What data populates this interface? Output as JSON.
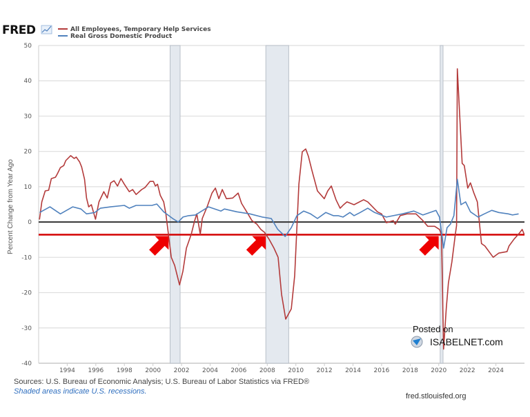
{
  "header": {
    "logo": "FRED"
  },
  "footer": {
    "sources": "Sources: U.S. Bureau of Economic Analysis; U.S. Bureau of Labor Statistics via FRED®",
    "shaded_note": "Shaded areas indicate U.S. recessions.",
    "site": "fred.stlouisfed.org"
  },
  "watermark": {
    "line1": "Posted on",
    "line2": "ISABELNET.com"
  },
  "chart_data": {
    "type": "line",
    "ylabel": "Percent Change from Year Ago",
    "xlim": [
      1992,
      2026
    ],
    "ylim": [
      -40,
      50
    ],
    "grid": true,
    "legend_placement": "top-left",
    "x_ticks": [
      "1994",
      "1996",
      "1998",
      "2000",
      "2002",
      "2004",
      "2006",
      "2008",
      "2010",
      "2012",
      "2014",
      "2016",
      "2018",
      "2020",
      "2022",
      "2024"
    ],
    "y_ticks": [
      "50",
      "40",
      "30",
      "20",
      "10",
      "0",
      "-10",
      "-20",
      "-30",
      "-40"
    ],
    "recessions": [
      [
        2001.2,
        2001.9
      ],
      [
        2007.9,
        2009.5
      ],
      [
        2020.1,
        2020.3
      ]
    ],
    "reference_lines": [
      {
        "value": 0,
        "color": "#333333"
      },
      {
        "value": -3.6,
        "color": "#d40000"
      }
    ],
    "annotation_arrows": [
      2001.0,
      2007.8,
      2019.9
    ],
    "series": [
      {
        "name": "All Employees, Temporary Help Services",
        "color": "#b33a3a",
        "points": [
          [
            1992.06,
            0.7
          ],
          [
            1992.22,
            5.7
          ],
          [
            1992.46,
            8.8
          ],
          [
            1992.7,
            9.0
          ],
          [
            1992.89,
            12.3
          ],
          [
            1993.18,
            12.7
          ],
          [
            1993.32,
            13.7
          ],
          [
            1993.52,
            15.4
          ],
          [
            1993.76,
            16.0
          ],
          [
            1993.9,
            17.4
          ],
          [
            1994.24,
            18.8
          ],
          [
            1994.48,
            18.0
          ],
          [
            1994.63,
            18.4
          ],
          [
            1994.87,
            17.0
          ],
          [
            1995.01,
            15.6
          ],
          [
            1995.21,
            12.1
          ],
          [
            1995.35,
            6.8
          ],
          [
            1995.5,
            4.3
          ],
          [
            1995.69,
            4.9
          ],
          [
            1995.83,
            2.9
          ],
          [
            1995.98,
            0.8
          ],
          [
            1996.22,
            5.7
          ],
          [
            1996.56,
            8.6
          ],
          [
            1996.8,
            6.8
          ],
          [
            1997.04,
            11.1
          ],
          [
            1997.28,
            11.7
          ],
          [
            1997.52,
            10.2
          ],
          [
            1997.76,
            12.3
          ],
          [
            1998.0,
            10.7
          ],
          [
            1998.34,
            8.6
          ],
          [
            1998.58,
            9.2
          ],
          [
            1998.82,
            7.8
          ],
          [
            1999.21,
            9.2
          ],
          [
            1999.45,
            9.8
          ],
          [
            1999.79,
            11.5
          ],
          [
            2000.03,
            11.5
          ],
          [
            2000.17,
            10.2
          ],
          [
            2000.32,
            10.7
          ],
          [
            2000.51,
            7.6
          ],
          [
            2000.75,
            5.7
          ],
          [
            2000.9,
            2.4
          ],
          [
            2001.04,
            -2.1
          ],
          [
            2001.28,
            -10.0
          ],
          [
            2001.52,
            -12.3
          ],
          [
            2001.86,
            -17.8
          ],
          [
            2002.1,
            -13.9
          ],
          [
            2002.34,
            -7.4
          ],
          [
            2002.68,
            -3.5
          ],
          [
            2002.92,
            0.4
          ],
          [
            2003.07,
            2.3
          ],
          [
            2003.31,
            -3.5
          ],
          [
            2003.45,
            1.0
          ],
          [
            2003.79,
            4.3
          ],
          [
            2004.13,
            8.2
          ],
          [
            2004.37,
            9.6
          ],
          [
            2004.61,
            6.6
          ],
          [
            2004.85,
            9.2
          ],
          [
            2005.14,
            6.6
          ],
          [
            2005.58,
            6.8
          ],
          [
            2005.96,
            8.2
          ],
          [
            2006.2,
            5.3
          ],
          [
            2006.59,
            2.7
          ],
          [
            2006.93,
            0.4
          ],
          [
            2007.27,
            -0.6
          ],
          [
            2007.55,
            -2.1
          ],
          [
            2007.8,
            -2.9
          ],
          [
            2008.13,
            -4.9
          ],
          [
            2008.47,
            -7.4
          ],
          [
            2008.76,
            -10.0
          ],
          [
            2009.0,
            -20.5
          ],
          [
            2009.29,
            -27.5
          ],
          [
            2009.68,
            -24.6
          ],
          [
            2009.92,
            -15.2
          ],
          [
            2010.21,
            10.7
          ],
          [
            2010.45,
            19.9
          ],
          [
            2010.69,
            20.7
          ],
          [
            2010.88,
            18.6
          ],
          [
            2011.12,
            14.7
          ],
          [
            2011.51,
            8.8
          ],
          [
            2011.99,
            6.6
          ],
          [
            2012.23,
            8.8
          ],
          [
            2012.48,
            10.2
          ],
          [
            2012.81,
            6.3
          ],
          [
            2013.1,
            3.9
          ],
          [
            2013.34,
            4.9
          ],
          [
            2013.58,
            5.7
          ],
          [
            2014.07,
            4.9
          ],
          [
            2014.74,
            6.3
          ],
          [
            2015.03,
            5.7
          ],
          [
            2015.37,
            4.3
          ],
          [
            2015.71,
            2.9
          ],
          [
            2016.0,
            2.3
          ],
          [
            2016.33,
            -0.2
          ],
          [
            2016.82,
            0.4
          ],
          [
            2016.96,
            -0.6
          ],
          [
            2017.3,
            1.8
          ],
          [
            2017.78,
            2.3
          ],
          [
            2018.41,
            2.3
          ],
          [
            2018.89,
            0.4
          ],
          [
            2019.23,
            -1.2
          ],
          [
            2019.71,
            -1.2
          ],
          [
            2020.05,
            -2.1
          ],
          [
            2020.19,
            -3.5
          ],
          [
            2020.34,
            -36.0
          ],
          [
            2020.53,
            -24.4
          ],
          [
            2020.68,
            -17.2
          ],
          [
            2020.92,
            -11.3
          ],
          [
            2021.16,
            -3.5
          ],
          [
            2021.25,
            -1.0
          ],
          [
            2021.3,
            43.4
          ],
          [
            2021.5,
            27.7
          ],
          [
            2021.64,
            16.6
          ],
          [
            2021.79,
            16.0
          ],
          [
            2022.03,
            9.6
          ],
          [
            2022.22,
            11.1
          ],
          [
            2022.46,
            8.2
          ],
          [
            2022.7,
            5.7
          ],
          [
            2022.99,
            -6.1
          ],
          [
            2023.23,
            -6.8
          ],
          [
            2023.81,
            -10.0
          ],
          [
            2024.2,
            -8.8
          ],
          [
            2024.78,
            -8.4
          ],
          [
            2024.92,
            -6.8
          ],
          [
            2025.26,
            -4.9
          ],
          [
            2025.65,
            -3.1
          ],
          [
            2025.84,
            -2.1
          ],
          [
            2025.98,
            -3.5
          ]
        ]
      },
      {
        "name": "Real Gross Domestic Product",
        "color": "#4f81bd",
        "points": [
          [
            1992.07,
            2.7
          ],
          [
            1992.79,
            4.3
          ],
          [
            1993.52,
            2.3
          ],
          [
            1994.39,
            4.3
          ],
          [
            1994.96,
            3.7
          ],
          [
            1995.35,
            2.3
          ],
          [
            1995.93,
            2.7
          ],
          [
            1996.32,
            3.9
          ],
          [
            1997.04,
            4.3
          ],
          [
            1998.0,
            4.7
          ],
          [
            1998.34,
            3.9
          ],
          [
            1998.82,
            4.7
          ],
          [
            1999.93,
            4.7
          ],
          [
            2000.27,
            5.1
          ],
          [
            2000.75,
            2.9
          ],
          [
            2001.38,
            1.0
          ],
          [
            2001.77,
            0.0
          ],
          [
            2002.1,
            1.4
          ],
          [
            2002.49,
            1.8
          ],
          [
            2002.97,
            2.0
          ],
          [
            2003.89,
            4.3
          ],
          [
            2004.76,
            3.1
          ],
          [
            2005.0,
            3.7
          ],
          [
            2005.87,
            2.9
          ],
          [
            2006.79,
            2.3
          ],
          [
            2007.65,
            1.4
          ],
          [
            2008.28,
            1.0
          ],
          [
            2008.72,
            -2.0
          ],
          [
            2009.25,
            -4.1
          ],
          [
            2009.68,
            -1.6
          ],
          [
            2010.07,
            1.8
          ],
          [
            2010.55,
            3.1
          ],
          [
            2011.03,
            2.3
          ],
          [
            2011.51,
            1.0
          ],
          [
            2012.09,
            2.7
          ],
          [
            2012.62,
            1.8
          ],
          [
            2012.96,
            1.8
          ],
          [
            2013.3,
            1.4
          ],
          [
            2013.78,
            2.7
          ],
          [
            2014.07,
            1.8
          ],
          [
            2014.5,
            2.7
          ],
          [
            2015.03,
            3.9
          ],
          [
            2015.51,
            2.7
          ],
          [
            2016.33,
            1.4
          ],
          [
            2017.44,
            2.3
          ],
          [
            2018.26,
            3.1
          ],
          [
            2018.89,
            2.0
          ],
          [
            2019.81,
            3.3
          ],
          [
            2020.05,
            1.4
          ],
          [
            2020.34,
            -7.4
          ],
          [
            2020.58,
            -1.6
          ],
          [
            2020.82,
            -0.6
          ],
          [
            2021.06,
            1.8
          ],
          [
            2021.3,
            12.1
          ],
          [
            2021.55,
            4.9
          ],
          [
            2021.88,
            5.7
          ],
          [
            2022.22,
            2.9
          ],
          [
            2022.75,
            1.4
          ],
          [
            2023.19,
            2.3
          ],
          [
            2023.71,
            3.3
          ],
          [
            2024.2,
            2.7
          ],
          [
            2024.87,
            2.3
          ],
          [
            2025.16,
            2.0
          ],
          [
            2025.59,
            2.3
          ]
        ]
      }
    ]
  }
}
